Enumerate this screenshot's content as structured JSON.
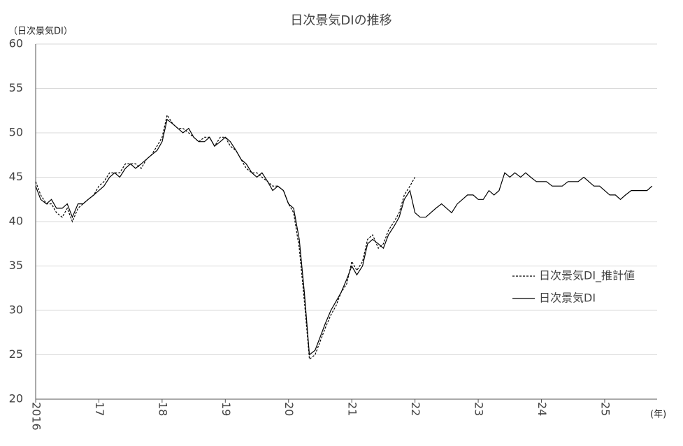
{
  "chart_data": {
    "type": "line",
    "title": "日次景気DIの推移",
    "y_label": "（日次景気DI）",
    "x_label": "(年)",
    "xlim": [
      2016,
      2025.83
    ],
    "xticks": [
      {
        "value": 2016,
        "label": "2016"
      },
      {
        "value": 2017,
        "label": "17"
      },
      {
        "value": 2018,
        "label": "18"
      },
      {
        "value": 2019,
        "label": "19"
      },
      {
        "value": 2020,
        "label": "20"
      },
      {
        "value": 2021,
        "label": "21"
      },
      {
        "value": 2022,
        "label": "22"
      },
      {
        "value": 2023,
        "label": "23"
      },
      {
        "value": 2024,
        "label": "24"
      },
      {
        "value": 2025,
        "label": "25"
      }
    ],
    "ylim": [
      20,
      60
    ],
    "yticks": [
      20,
      25,
      30,
      35,
      40,
      45,
      50,
      55,
      60
    ],
    "grid": true,
    "legend": "right",
    "series": [
      {
        "name": "日次景気DI_推計値",
        "color": "#000000",
        "dashed": true,
        "x": [
          2016.0,
          2016.08,
          2016.17,
          2016.25,
          2016.33,
          2016.42,
          2016.5,
          2016.58,
          2016.67,
          2016.75,
          2016.83,
          2016.92,
          2017.0,
          2017.08,
          2017.17,
          2017.25,
          2017.33,
          2017.42,
          2017.5,
          2017.58,
          2017.67,
          2017.75,
          2017.83,
          2017.92,
          2018.0,
          2018.08,
          2018.17,
          2018.25,
          2018.33,
          2018.42,
          2018.5,
          2018.58,
          2018.67,
          2018.75,
          2018.83,
          2018.92,
          2019.0,
          2019.08,
          2019.17,
          2019.25,
          2019.33,
          2019.42,
          2019.5,
          2019.58,
          2019.67,
          2019.75,
          2019.83,
          2019.92,
          2020.0,
          2020.08,
          2020.17,
          2020.25,
          2020.33,
          2020.42,
          2020.5,
          2020.58,
          2020.67,
          2020.75,
          2020.83,
          2020.92,
          2021.0,
          2021.08,
          2021.17,
          2021.25,
          2021.33,
          2021.42,
          2021.5,
          2021.58,
          2021.67,
          2021.75,
          2021.83,
          2021.92,
          2022.0
        ],
        "values": [
          44.5,
          43,
          42,
          42,
          41,
          40.5,
          41.5,
          40,
          41.5,
          42,
          42.5,
          43,
          44,
          44.5,
          45.5,
          45.5,
          45.5,
          46.5,
          46.5,
          46.5,
          46,
          47,
          47.5,
          48.5,
          49.5,
          52,
          51,
          50.5,
          50.5,
          50,
          49.5,
          49,
          49.5,
          49.5,
          48.5,
          49.5,
          49.5,
          48.5,
          48,
          47,
          46,
          45.5,
          45.5,
          45,
          44.5,
          44,
          44,
          43.5,
          42,
          41,
          37,
          31,
          24.5,
          25,
          26.5,
          28,
          29.5,
          30.5,
          32,
          33,
          35.5,
          34.5,
          35.5,
          38,
          38.5,
          37,
          37.5,
          39,
          40,
          41,
          43,
          44,
          45
        ]
      },
      {
        "name": "日次景気DI",
        "color": "#000000",
        "dashed": false,
        "x": [
          2016.0,
          2016.08,
          2016.17,
          2016.25,
          2016.33,
          2016.42,
          2016.5,
          2016.58,
          2016.67,
          2016.75,
          2016.83,
          2016.92,
          2017.0,
          2017.08,
          2017.17,
          2017.25,
          2017.33,
          2017.42,
          2017.5,
          2017.58,
          2017.67,
          2017.75,
          2017.83,
          2017.92,
          2018.0,
          2018.08,
          2018.17,
          2018.25,
          2018.33,
          2018.42,
          2018.5,
          2018.58,
          2018.67,
          2018.75,
          2018.83,
          2018.92,
          2019.0,
          2019.08,
          2019.17,
          2019.25,
          2019.33,
          2019.42,
          2019.5,
          2019.58,
          2019.67,
          2019.75,
          2019.83,
          2019.92,
          2020.0,
          2020.08,
          2020.17,
          2020.25,
          2020.33,
          2020.42,
          2020.5,
          2020.58,
          2020.67,
          2020.75,
          2020.83,
          2020.92,
          2021.0,
          2021.08,
          2021.17,
          2021.25,
          2021.33,
          2021.42,
          2021.5,
          2021.58,
          2021.67,
          2021.75,
          2021.83,
          2021.92,
          2022.0,
          2022.08,
          2022.17,
          2022.25,
          2022.33,
          2022.42,
          2022.5,
          2022.58,
          2022.67,
          2022.75,
          2022.83,
          2022.92,
          2023.0,
          2023.08,
          2023.17,
          2023.25,
          2023.33,
          2023.42,
          2023.5,
          2023.58,
          2023.67,
          2023.75,
          2023.83,
          2023.92,
          2024.0,
          2024.08,
          2024.17,
          2024.25,
          2024.33,
          2024.42,
          2024.5,
          2024.58,
          2024.67,
          2024.75,
          2024.83,
          2024.92,
          2025.0,
          2025.08,
          2025.17,
          2025.25,
          2025.33,
          2025.42,
          2025.5,
          2025.58,
          2025.67,
          2025.75
        ],
        "values": [
          44,
          42.5,
          42,
          42.5,
          41.5,
          41.5,
          42,
          40.5,
          42,
          42,
          42.5,
          43,
          43.5,
          44,
          45,
          45.5,
          45,
          46,
          46.5,
          46,
          46.5,
          47,
          47.5,
          48,
          49,
          51.5,
          51,
          50.5,
          50,
          50.5,
          49.5,
          49,
          49,
          49.5,
          48.5,
          49,
          49.5,
          49,
          48,
          47,
          46.5,
          45.5,
          45,
          45.5,
          44.5,
          43.5,
          44,
          43.5,
          42,
          41.5,
          38,
          32,
          25,
          25.5,
          27,
          28.5,
          30,
          31,
          32,
          33.5,
          35,
          34,
          35,
          37.5,
          38,
          37.5,
          37,
          38.5,
          39.5,
          40.5,
          42.5,
          43.5,
          41,
          40.5,
          40.5,
          41,
          41.5,
          42,
          41.5,
          41,
          42,
          42.5,
          43,
          43,
          42.5,
          42.5,
          43.5,
          43,
          43.5,
          45.5,
          45,
          45.5,
          45,
          45.5,
          45,
          44.5,
          44.5,
          44.5,
          44,
          44,
          44,
          44.5,
          44.5,
          44.5,
          45,
          44.5,
          44,
          44,
          43.5,
          43,
          43,
          42.5,
          43,
          43.5,
          43.5,
          43.5,
          43.5,
          44
        ]
      }
    ]
  }
}
